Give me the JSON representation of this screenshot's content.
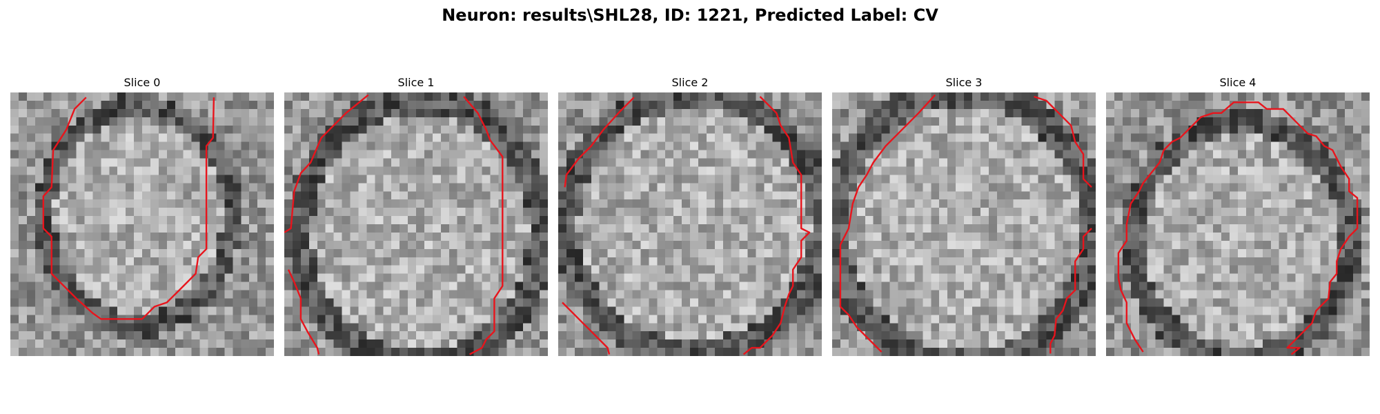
{
  "figure": {
    "title": "Neuron: results\\SHL28, ID: 1221, Predicted Label: CV"
  },
  "colors": {
    "contour": "#e8141c",
    "background": "#ffffff"
  },
  "slices": [
    {
      "title": "Slice 0"
    },
    {
      "title": "Slice 1"
    },
    {
      "title": "Slice 2"
    },
    {
      "title": "Slice 3"
    },
    {
      "title": "Slice 4"
    }
  ]
}
